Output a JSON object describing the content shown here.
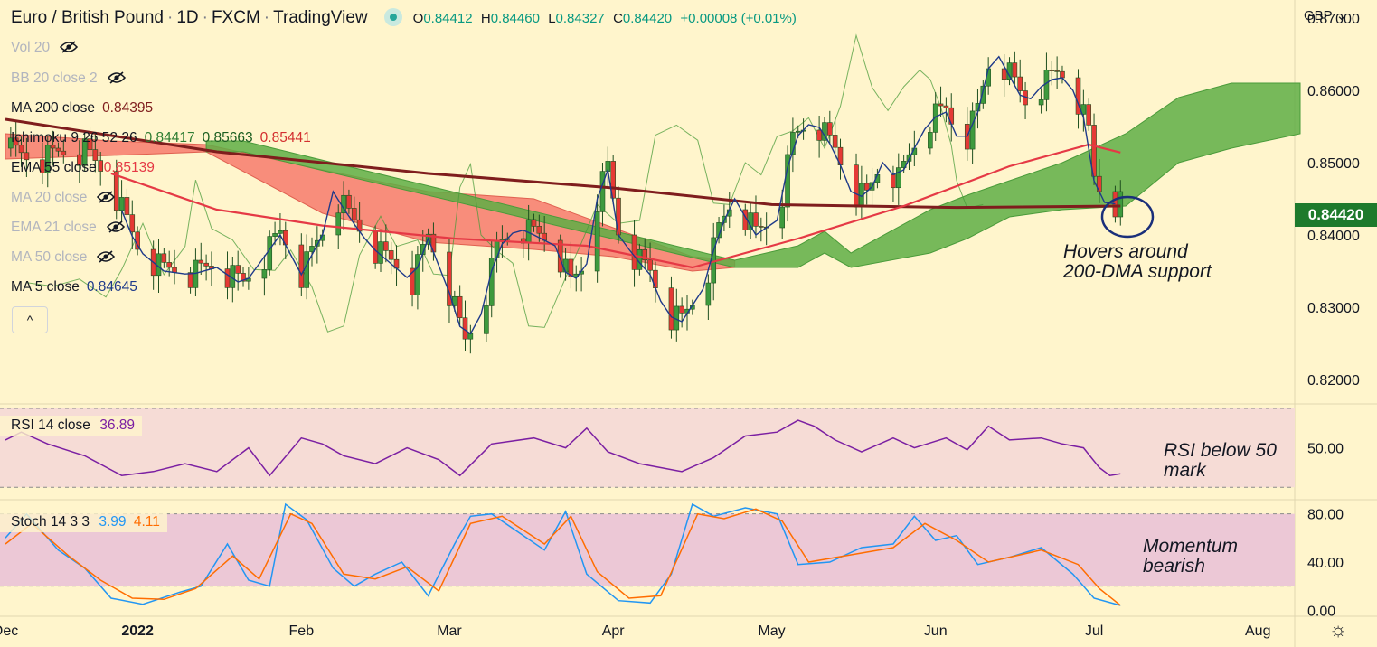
{
  "header": {
    "symbol": "Euro / British Pound",
    "interval": "1D",
    "exchange": "FXCM",
    "platform": "TradingView",
    "sep": "·",
    "o_label": "O",
    "o": "0.84412",
    "h_label": "H",
    "h": "0.84460",
    "l_label": "L",
    "l": "0.84327",
    "c_label": "C",
    "c": "0.84420",
    "change": "+0.00008 (+0.01%)",
    "currency": "GBP",
    "currency_caret": "⌄"
  },
  "legend": {
    "vol": "Vol 20",
    "bb": "BB 20 close 2",
    "ma200": {
      "label": "MA 200 close",
      "value": "0.84395"
    },
    "ichimoku": {
      "label": "Ichimoku 9 26 52 26",
      "v1": "0.84417",
      "v2": "0.85663",
      "v3": "0.85441"
    },
    "ema55": {
      "label": "EMA 55 close",
      "value": "0.85139"
    },
    "ma20": "MA 20 close",
    "ema21": "EMA 21 close",
    "ma50": "MA 50 close",
    "ma5": {
      "label": "MA 5 close",
      "value": "0.84645"
    },
    "collapse": "^"
  },
  "rsi": {
    "label": "RSI 14 close",
    "value": "36.89"
  },
  "stoch": {
    "label": "Stoch 14 3 3",
    "k": "3.99",
    "d": "4.11"
  },
  "annotations": {
    "hover_line1": "Hovers around",
    "hover_line2": "200-DMA support",
    "rsi_line1": "RSI below 50",
    "rsi_line2": "mark",
    "mom_line1": "Momentum",
    "mom_line2": "bearish"
  },
  "price_tag": "0.84420",
  "settings_icon": "gear-icon",
  "colors": {
    "bg": "#fff5cc",
    "up": "#26a69a",
    "candle_up": "#3e9a3e",
    "candle_dn": "#e53935",
    "ma200": "#7f1d1d",
    "ema55": "#e53945",
    "ma5": "#1e3a8a",
    "lagging": "#4a9b3a",
    "rsi": "#7b1fa2",
    "stoch_k": "#2196f3",
    "stoch_d": "#ff6d00"
  },
  "chart_data": {
    "type": "candlestick",
    "title": "Euro / British Pound · 1D · FXCM",
    "x_ticks": [
      {
        "label": "Dec",
        "day": 0
      },
      {
        "label": "2022",
        "day": 25
      },
      {
        "label": "Feb",
        "day": 56
      },
      {
        "label": "Mar",
        "day": 84
      },
      {
        "label": "Apr",
        "day": 115
      },
      {
        "label": "May",
        "day": 145
      },
      {
        "label": "Jun",
        "day": 176
      },
      {
        "label": "Jul",
        "day": 206
      },
      {
        "label": "Aug",
        "day": 237
      }
    ],
    "x_range": [
      0,
      245
    ],
    "price_axis": {
      "ticks": [
        "0.87000",
        "0.86000",
        "0.85000",
        "0.84000",
        "0.83000",
        "0.82000"
      ],
      "ylim": [
        0.8175,
        0.8715
      ]
    },
    "price_anchors": [
      {
        "day": 0,
        "price": 0.852
      },
      {
        "day": 5,
        "price": 0.85
      },
      {
        "day": 10,
        "price": 0.851
      },
      {
        "day": 15,
        "price": 0.8515
      },
      {
        "day": 20,
        "price": 0.847
      },
      {
        "day": 25,
        "price": 0.838
      },
      {
        "day": 30,
        "price": 0.835
      },
      {
        "day": 35,
        "price": 0.8345
      },
      {
        "day": 40,
        "price": 0.8355
      },
      {
        "day": 45,
        "price": 0.833
      },
      {
        "day": 48,
        "price": 0.836
      },
      {
        "day": 52,
        "price": 0.84
      },
      {
        "day": 56,
        "price": 0.8345
      },
      {
        "day": 60,
        "price": 0.84
      },
      {
        "day": 62,
        "price": 0.846
      },
      {
        "day": 65,
        "price": 0.8425
      },
      {
        "day": 69,
        "price": 0.8385
      },
      {
        "day": 73,
        "price": 0.836
      },
      {
        "day": 77,
        "price": 0.8335
      },
      {
        "day": 80,
        "price": 0.8395
      },
      {
        "day": 84,
        "price": 0.832
      },
      {
        "day": 87,
        "price": 0.825
      },
      {
        "day": 90,
        "price": 0.829
      },
      {
        "day": 93,
        "price": 0.838
      },
      {
        "day": 97,
        "price": 0.841
      },
      {
        "day": 100,
        "price": 0.84
      },
      {
        "day": 104,
        "price": 0.8385
      },
      {
        "day": 107,
        "price": 0.833
      },
      {
        "day": 110,
        "price": 0.836
      },
      {
        "day": 112,
        "price": 0.845
      },
      {
        "day": 114,
        "price": 0.849
      },
      {
        "day": 116,
        "price": 0.84
      },
      {
        "day": 119,
        "price": 0.837
      },
      {
        "day": 122,
        "price": 0.8345
      },
      {
        "day": 125,
        "price": 0.829
      },
      {
        "day": 128,
        "price": 0.828
      },
      {
        "day": 132,
        "price": 0.8325
      },
      {
        "day": 135,
        "price": 0.8405
      },
      {
        "day": 138,
        "price": 0.845
      },
      {
        "day": 142,
        "price": 0.84
      },
      {
        "day": 146,
        "price": 0.842
      },
      {
        "day": 149,
        "price": 0.853
      },
      {
        "day": 153,
        "price": 0.856
      },
      {
        "day": 157,
        "price": 0.8515
      },
      {
        "day": 160,
        "price": 0.846
      },
      {
        "day": 163,
        "price": 0.845
      },
      {
        "day": 166,
        "price": 0.85
      },
      {
        "day": 169,
        "price": 0.8475
      },
      {
        "day": 172,
        "price": 0.852
      },
      {
        "day": 175,
        "price": 0.856
      },
      {
        "day": 178,
        "price": 0.857
      },
      {
        "day": 181,
        "price": 0.852
      },
      {
        "day": 184,
        "price": 0.857
      },
      {
        "day": 187,
        "price": 0.866
      },
      {
        "day": 190,
        "price": 0.862
      },
      {
        "day": 193,
        "price": 0.858
      },
      {
        "day": 196,
        "price": 0.8605
      },
      {
        "day": 199,
        "price": 0.862
      },
      {
        "day": 201,
        "price": 0.8615
      },
      {
        "day": 203,
        "price": 0.8585
      },
      {
        "day": 205,
        "price": 0.854
      },
      {
        "day": 206,
        "price": 0.8475
      },
      {
        "day": 208,
        "price": 0.8445
      },
      {
        "day": 211,
        "price": 0.8442
      }
    ],
    "ma200": [
      {
        "day": 0,
        "price": 0.856
      },
      {
        "day": 40,
        "price": 0.8515
      },
      {
        "day": 80,
        "price": 0.8485
      },
      {
        "day": 115,
        "price": 0.8465
      },
      {
        "day": 145,
        "price": 0.8442
      },
      {
        "day": 180,
        "price": 0.8438
      },
      {
        "day": 211,
        "price": 0.844
      }
    ],
    "ema55": [
      {
        "day": 20,
        "price": 0.8485
      },
      {
        "day": 40,
        "price": 0.8435
      },
      {
        "day": 60,
        "price": 0.8413
      },
      {
        "day": 85,
        "price": 0.8395
      },
      {
        "day": 110,
        "price": 0.8385
      },
      {
        "day": 130,
        "price": 0.8355
      },
      {
        "day": 150,
        "price": 0.8395
      },
      {
        "day": 170,
        "price": 0.844
      },
      {
        "day": 190,
        "price": 0.8495
      },
      {
        "day": 205,
        "price": 0.8525
      },
      {
        "day": 211,
        "price": 0.8514
      }
    ],
    "cloud_green": [
      {
        "day": 38,
        "top": 0.853,
        "bot": 0.8515
      },
      {
        "day": 45,
        "top": 0.853,
        "bot": 0.8515
      },
      {
        "day": 138,
        "top": 0.8365,
        "bot": 0.8355
      },
      {
        "day": 150,
        "top": 0.8385,
        "bot": 0.8355
      },
      {
        "day": 155,
        "top": 0.8405,
        "bot": 0.8375
      },
      {
        "day": 160,
        "top": 0.8375,
        "bot": 0.8355
      },
      {
        "day": 175,
        "top": 0.8435,
        "bot": 0.8375
      },
      {
        "day": 182,
        "top": 0.8455,
        "bot": 0.8395
      },
      {
        "day": 190,
        "top": 0.8475,
        "bot": 0.8425
      },
      {
        "day": 200,
        "top": 0.85,
        "bot": 0.8435
      },
      {
        "day": 212,
        "top": 0.854,
        "bot": 0.844
      },
      {
        "day": 222,
        "top": 0.859,
        "bot": 0.85
      },
      {
        "day": 232,
        "top": 0.861,
        "bot": 0.852
      },
      {
        "day": 245,
        "top": 0.861,
        "bot": 0.854
      }
    ],
    "cloud_red": [
      {
        "day": 0,
        "top": 0.854,
        "bot": 0.8505
      },
      {
        "day": 20,
        "top": 0.853,
        "bot": 0.851
      },
      {
        "day": 38,
        "top": 0.8525,
        "bot": 0.8515
      },
      {
        "day": 60,
        "top": 0.849,
        "bot": 0.843
      },
      {
        "day": 80,
        "top": 0.846,
        "bot": 0.839
      },
      {
        "day": 100,
        "top": 0.845,
        "bot": 0.838
      },
      {
        "day": 115,
        "top": 0.841,
        "bot": 0.837
      },
      {
        "day": 130,
        "top": 0.837,
        "bot": 0.835
      },
      {
        "day": 138,
        "top": 0.8365,
        "bot": 0.8355
      }
    ],
    "rsi_series": [
      {
        "day": 0,
        "v": 54
      },
      {
        "day": 3,
        "v": 58
      },
      {
        "day": 8,
        "v": 52
      },
      {
        "day": 15,
        "v": 46
      },
      {
        "day": 22,
        "v": 36
      },
      {
        "day": 28,
        "v": 38
      },
      {
        "day": 34,
        "v": 42
      },
      {
        "day": 40,
        "v": 38
      },
      {
        "day": 46,
        "v": 50
      },
      {
        "day": 50,
        "v": 36
      },
      {
        "day": 56,
        "v": 55
      },
      {
        "day": 60,
        "v": 52
      },
      {
        "day": 64,
        "v": 46
      },
      {
        "day": 70,
        "v": 42
      },
      {
        "day": 76,
        "v": 50
      },
      {
        "day": 82,
        "v": 44
      },
      {
        "day": 86,
        "v": 36
      },
      {
        "day": 92,
        "v": 52
      },
      {
        "day": 100,
        "v": 55
      },
      {
        "day": 106,
        "v": 50
      },
      {
        "day": 110,
        "v": 60
      },
      {
        "day": 114,
        "v": 48
      },
      {
        "day": 120,
        "v": 42
      },
      {
        "day": 128,
        "v": 38
      },
      {
        "day": 134,
        "v": 45
      },
      {
        "day": 140,
        "v": 56
      },
      {
        "day": 146,
        "v": 58
      },
      {
        "day": 150,
        "v": 64
      },
      {
        "day": 153,
        "v": 61
      },
      {
        "day": 157,
        "v": 54
      },
      {
        "day": 162,
        "v": 48
      },
      {
        "day": 168,
        "v": 55
      },
      {
        "day": 172,
        "v": 50
      },
      {
        "day": 178,
        "v": 55
      },
      {
        "day": 182,
        "v": 49
      },
      {
        "day": 186,
        "v": 61
      },
      {
        "day": 190,
        "v": 54
      },
      {
        "day": 196,
        "v": 55
      },
      {
        "day": 200,
        "v": 52
      },
      {
        "day": 204,
        "v": 50
      },
      {
        "day": 207,
        "v": 40
      },
      {
        "day": 209,
        "v": 36
      },
      {
        "day": 211,
        "v": 36.89
      }
    ],
    "stoch_k": [
      {
        "day": 0,
        "v": 60
      },
      {
        "day": 4,
        "v": 80
      },
      {
        "day": 10,
        "v": 50
      },
      {
        "day": 15,
        "v": 35
      },
      {
        "day": 20,
        "v": 10
      },
      {
        "day": 26,
        "v": 5
      },
      {
        "day": 33,
        "v": 15
      },
      {
        "day": 37,
        "v": 20
      },
      {
        "day": 42,
        "v": 55
      },
      {
        "day": 46,
        "v": 25
      },
      {
        "day": 50,
        "v": 20
      },
      {
        "day": 53,
        "v": 88
      },
      {
        "day": 57,
        "v": 75
      },
      {
        "day": 62,
        "v": 35
      },
      {
        "day": 66,
        "v": 20
      },
      {
        "day": 70,
        "v": 30
      },
      {
        "day": 75,
        "v": 40
      },
      {
        "day": 80,
        "v": 12
      },
      {
        "day": 85,
        "v": 55
      },
      {
        "day": 88,
        "v": 78
      },
      {
        "day": 92,
        "v": 80
      },
      {
        "day": 97,
        "v": 65
      },
      {
        "day": 102,
        "v": 50
      },
      {
        "day": 106,
        "v": 82
      },
      {
        "day": 110,
        "v": 30
      },
      {
        "day": 116,
        "v": 8
      },
      {
        "day": 122,
        "v": 6
      },
      {
        "day": 126,
        "v": 30
      },
      {
        "day": 130,
        "v": 88
      },
      {
        "day": 134,
        "v": 78
      },
      {
        "day": 140,
        "v": 85
      },
      {
        "day": 146,
        "v": 80
      },
      {
        "day": 150,
        "v": 38
      },
      {
        "day": 156,
        "v": 40
      },
      {
        "day": 162,
        "v": 52
      },
      {
        "day": 168,
        "v": 55
      },
      {
        "day": 172,
        "v": 78
      },
      {
        "day": 176,
        "v": 58
      },
      {
        "day": 180,
        "v": 62
      },
      {
        "day": 184,
        "v": 38
      },
      {
        "day": 190,
        "v": 44
      },
      {
        "day": 196,
        "v": 52
      },
      {
        "day": 202,
        "v": 30
      },
      {
        "day": 206,
        "v": 10
      },
      {
        "day": 211,
        "v": 3.99
      }
    ],
    "stoch_d": [
      {
        "day": 0,
        "v": 55
      },
      {
        "day": 5,
        "v": 72
      },
      {
        "day": 12,
        "v": 45
      },
      {
        "day": 18,
        "v": 25
      },
      {
        "day": 24,
        "v": 10
      },
      {
        "day": 30,
        "v": 9
      },
      {
        "day": 36,
        "v": 18
      },
      {
        "day": 43,
        "v": 45
      },
      {
        "day": 48,
        "v": 26
      },
      {
        "day": 54,
        "v": 80
      },
      {
        "day": 58,
        "v": 72
      },
      {
        "day": 64,
        "v": 30
      },
      {
        "day": 70,
        "v": 26
      },
      {
        "day": 76,
        "v": 36
      },
      {
        "day": 82,
        "v": 16
      },
      {
        "day": 88,
        "v": 72
      },
      {
        "day": 94,
        "v": 78
      },
      {
        "day": 102,
        "v": 55
      },
      {
        "day": 107,
        "v": 78
      },
      {
        "day": 112,
        "v": 32
      },
      {
        "day": 118,
        "v": 10
      },
      {
        "day": 124,
        "v": 12
      },
      {
        "day": 131,
        "v": 80
      },
      {
        "day": 136,
        "v": 76
      },
      {
        "day": 142,
        "v": 84
      },
      {
        "day": 147,
        "v": 74
      },
      {
        "day": 152,
        "v": 40
      },
      {
        "day": 160,
        "v": 46
      },
      {
        "day": 168,
        "v": 52
      },
      {
        "day": 174,
        "v": 72
      },
      {
        "day": 180,
        "v": 58
      },
      {
        "day": 186,
        "v": 40
      },
      {
        "day": 196,
        "v": 50
      },
      {
        "day": 203,
        "v": 38
      },
      {
        "day": 207,
        "v": 18
      },
      {
        "day": 211,
        "v": 4.11
      }
    ],
    "rsi_axis": {
      "ticks": [
        "50.00"
      ],
      "ylim": [
        26,
        70
      ],
      "band": [
        30,
        70
      ]
    },
    "stoch_axis": {
      "ticks": [
        "80.00",
        "40.00",
        "0.00"
      ],
      "ylim": [
        -2,
        88
      ],
      "band": [
        20,
        80
      ]
    }
  }
}
